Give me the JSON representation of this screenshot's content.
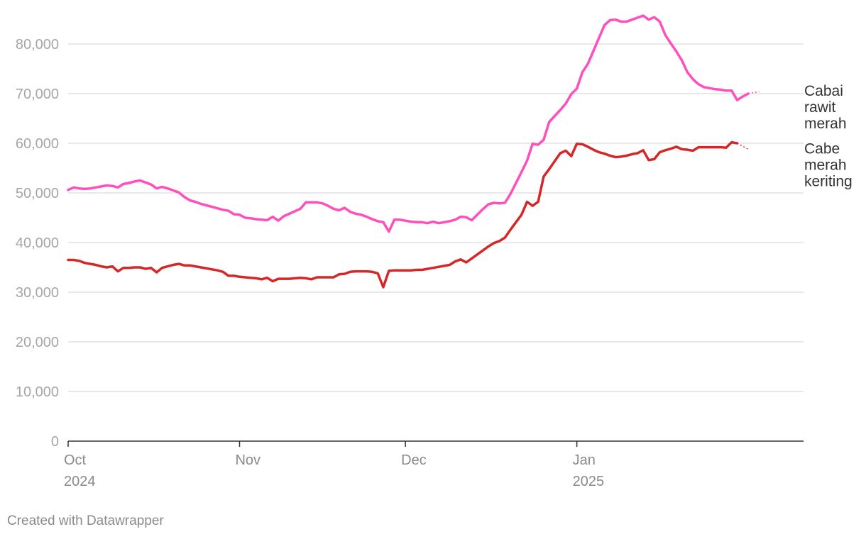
{
  "chart_data": {
    "type": "line",
    "title": "",
    "xlabel": "",
    "ylabel": "",
    "ylim": [
      0,
      80000
    ],
    "yticks": [
      0,
      10000,
      20000,
      30000,
      40000,
      50000,
      60000,
      70000,
      80000
    ],
    "ytick_labels": [
      "0",
      "10,000",
      "20,000",
      "30,000",
      "40,000",
      "50,000",
      "60,000",
      "70,000",
      "80,000"
    ],
    "xlim": [
      "2024-10-01",
      "2025-02-11"
    ],
    "x_ticks": [
      {
        "date": "2024-10-01",
        "label": "Oct",
        "sublabel": "2024"
      },
      {
        "date": "2024-11-01",
        "label": "Nov",
        "sublabel": ""
      },
      {
        "date": "2024-12-01",
        "label": "Dec",
        "sublabel": ""
      },
      {
        "date": "2025-01-01",
        "label": "Jan",
        "sublabel": "2025"
      }
    ],
    "grid": true,
    "series": [
      {
        "name": "Cabai rawit merah",
        "label_lines": [
          "Cabai",
          "rawit",
          "merah"
        ],
        "color": "#ff4fbd",
        "points": [
          [
            "2024-10-01",
            50600
          ],
          [
            "2024-10-02",
            51100
          ],
          [
            "2024-10-03",
            50900
          ],
          [
            "2024-10-04",
            50800
          ],
          [
            "2024-10-05",
            50900
          ],
          [
            "2024-10-06",
            51100
          ],
          [
            "2024-10-07",
            51300
          ],
          [
            "2024-10-08",
            51500
          ],
          [
            "2024-10-09",
            51400
          ],
          [
            "2024-10-10",
            51100
          ],
          [
            "2024-10-11",
            51800
          ],
          [
            "2024-10-12",
            52000
          ],
          [
            "2024-10-13",
            52300
          ],
          [
            "2024-10-14",
            52500
          ],
          [
            "2024-10-15",
            52100
          ],
          [
            "2024-10-16",
            51700
          ],
          [
            "2024-10-17",
            50900
          ],
          [
            "2024-10-18",
            51200
          ],
          [
            "2024-10-19",
            50900
          ],
          [
            "2024-10-20",
            50500
          ],
          [
            "2024-10-21",
            50100
          ],
          [
            "2024-10-22",
            49200
          ],
          [
            "2024-10-23",
            48500
          ],
          [
            "2024-10-24",
            48200
          ],
          [
            "2024-10-25",
            47800
          ],
          [
            "2024-10-26",
            47500
          ],
          [
            "2024-10-27",
            47200
          ],
          [
            "2024-10-28",
            46900
          ],
          [
            "2024-10-29",
            46600
          ],
          [
            "2024-10-30",
            46400
          ],
          [
            "2024-10-31",
            45700
          ],
          [
            "2024-11-01",
            45600
          ],
          [
            "2024-11-02",
            45000
          ],
          [
            "2024-11-03",
            44900
          ],
          [
            "2024-11-04",
            44700
          ],
          [
            "2024-11-05",
            44600
          ],
          [
            "2024-11-06",
            44500
          ],
          [
            "2024-11-07",
            45200
          ],
          [
            "2024-11-08",
            44400
          ],
          [
            "2024-11-09",
            45300
          ],
          [
            "2024-11-10",
            45800
          ],
          [
            "2024-11-11",
            46300
          ],
          [
            "2024-11-12",
            46800
          ],
          [
            "2024-11-13",
            48100
          ],
          [
            "2024-11-14",
            48100
          ],
          [
            "2024-11-15",
            48100
          ],
          [
            "2024-11-16",
            47900
          ],
          [
            "2024-11-17",
            47400
          ],
          [
            "2024-11-18",
            46800
          ],
          [
            "2024-11-19",
            46500
          ],
          [
            "2024-11-20",
            47000
          ],
          [
            "2024-11-21",
            46200
          ],
          [
            "2024-11-22",
            45800
          ],
          [
            "2024-11-23",
            45600
          ],
          [
            "2024-11-24",
            45200
          ],
          [
            "2024-11-25",
            44700
          ],
          [
            "2024-11-26",
            44300
          ],
          [
            "2024-11-27",
            44100
          ],
          [
            "2024-11-28",
            42200
          ],
          [
            "2024-11-29",
            44600
          ],
          [
            "2024-11-30",
            44600
          ],
          [
            "2024-12-01",
            44400
          ],
          [
            "2024-12-02",
            44200
          ],
          [
            "2024-12-03",
            44100
          ],
          [
            "2024-12-04",
            44100
          ],
          [
            "2024-12-05",
            43900
          ],
          [
            "2024-12-06",
            44200
          ],
          [
            "2024-12-07",
            43900
          ],
          [
            "2024-12-08",
            44100
          ],
          [
            "2024-12-09",
            44300
          ],
          [
            "2024-12-10",
            44600
          ],
          [
            "2024-12-11",
            45200
          ],
          [
            "2024-12-12",
            45100
          ],
          [
            "2024-12-13",
            44500
          ],
          [
            "2024-12-14",
            45600
          ],
          [
            "2024-12-15",
            46700
          ],
          [
            "2024-12-16",
            47700
          ],
          [
            "2024-12-17",
            48000
          ],
          [
            "2024-12-18",
            47900
          ],
          [
            "2024-12-19",
            48000
          ],
          [
            "2024-12-20",
            49800
          ],
          [
            "2024-12-21",
            52000
          ],
          [
            "2024-12-22",
            54200
          ],
          [
            "2024-12-23",
            56500
          ],
          [
            "2024-12-24",
            59900
          ],
          [
            "2024-12-25",
            59700
          ],
          [
            "2024-12-26",
            60700
          ],
          [
            "2024-12-27",
            64300
          ],
          [
            "2024-12-28",
            65500
          ],
          [
            "2024-12-29",
            66700
          ],
          [
            "2024-12-30",
            68000
          ],
          [
            "2024-12-31",
            69900
          ],
          [
            "2025-01-01",
            71000
          ],
          [
            "2025-01-02",
            74300
          ],
          [
            "2025-01-03",
            76000
          ],
          [
            "2025-01-04",
            78600
          ],
          [
            "2025-01-05",
            81200
          ],
          [
            "2025-01-06",
            83800
          ],
          [
            "2025-01-07",
            84800
          ],
          [
            "2025-01-08",
            84900
          ],
          [
            "2025-01-09",
            84500
          ],
          [
            "2025-01-10",
            84500
          ],
          [
            "2025-01-11",
            84900
          ],
          [
            "2025-01-12",
            85300
          ],
          [
            "2025-01-13",
            85700
          ],
          [
            "2025-01-14",
            84900
          ],
          [
            "2025-01-15",
            85400
          ],
          [
            "2025-01-16",
            84500
          ],
          [
            "2025-01-17",
            81800
          ],
          [
            "2025-01-18",
            80100
          ],
          [
            "2025-01-19",
            78500
          ],
          [
            "2025-01-20",
            76700
          ],
          [
            "2025-01-21",
            74300
          ],
          [
            "2025-01-22",
            72900
          ],
          [
            "2025-01-23",
            71900
          ],
          [
            "2025-01-24",
            71300
          ],
          [
            "2025-01-25",
            71100
          ],
          [
            "2025-01-26",
            70900
          ],
          [
            "2025-01-27",
            70800
          ],
          [
            "2025-01-28",
            70600
          ],
          [
            "2025-01-29",
            70600
          ],
          [
            "2025-01-30",
            68700
          ],
          [
            "2025-01-31",
            69400
          ],
          [
            "2025-02-01",
            70000
          ]
        ],
        "dashed_end": [
          "2025-02-03",
          70400
        ]
      },
      {
        "name": "Cabe merah keriting",
        "label_lines": [
          "Cabe",
          "merah",
          "keriting"
        ],
        "color": "#d42828",
        "points": [
          [
            "2024-10-01",
            36500
          ],
          [
            "2024-10-02",
            36500
          ],
          [
            "2024-10-03",
            36300
          ],
          [
            "2024-10-04",
            35900
          ],
          [
            "2024-10-05",
            35700
          ],
          [
            "2024-10-06",
            35500
          ],
          [
            "2024-10-07",
            35200
          ],
          [
            "2024-10-08",
            35000
          ],
          [
            "2024-10-09",
            35200
          ],
          [
            "2024-10-10",
            34200
          ],
          [
            "2024-10-11",
            34900
          ],
          [
            "2024-10-12",
            34900
          ],
          [
            "2024-10-13",
            35000
          ],
          [
            "2024-10-14",
            35000
          ],
          [
            "2024-10-15",
            34700
          ],
          [
            "2024-10-16",
            34900
          ],
          [
            "2024-10-17",
            34000
          ],
          [
            "2024-10-18",
            34900
          ],
          [
            "2024-10-19",
            35200
          ],
          [
            "2024-10-20",
            35500
          ],
          [
            "2024-10-21",
            35700
          ],
          [
            "2024-10-22",
            35400
          ],
          [
            "2024-10-23",
            35400
          ],
          [
            "2024-10-24",
            35200
          ],
          [
            "2024-10-25",
            35000
          ],
          [
            "2024-10-26",
            34800
          ],
          [
            "2024-10-27",
            34600
          ],
          [
            "2024-10-28",
            34400
          ],
          [
            "2024-10-29",
            34100
          ],
          [
            "2024-10-30",
            33300
          ],
          [
            "2024-10-31",
            33300
          ],
          [
            "2024-11-01",
            33100
          ],
          [
            "2024-11-02",
            33000
          ],
          [
            "2024-11-03",
            32900
          ],
          [
            "2024-11-04",
            32800
          ],
          [
            "2024-11-05",
            32600
          ],
          [
            "2024-11-06",
            32900
          ],
          [
            "2024-11-07",
            32200
          ],
          [
            "2024-11-08",
            32700
          ],
          [
            "2024-11-09",
            32700
          ],
          [
            "2024-11-10",
            32700
          ],
          [
            "2024-11-11",
            32800
          ],
          [
            "2024-11-12",
            32900
          ],
          [
            "2024-11-13",
            32800
          ],
          [
            "2024-11-14",
            32600
          ],
          [
            "2024-11-15",
            33000
          ],
          [
            "2024-11-16",
            33000
          ],
          [
            "2024-11-17",
            33000
          ],
          [
            "2024-11-18",
            33000
          ],
          [
            "2024-11-19",
            33600
          ],
          [
            "2024-11-20",
            33700
          ],
          [
            "2024-11-21",
            34100
          ],
          [
            "2024-11-22",
            34200
          ],
          [
            "2024-11-23",
            34200
          ],
          [
            "2024-11-24",
            34200
          ],
          [
            "2024-11-25",
            34100
          ],
          [
            "2024-11-26",
            33800
          ],
          [
            "2024-11-27",
            31000
          ],
          [
            "2024-11-28",
            34300
          ],
          [
            "2024-11-29",
            34400
          ],
          [
            "2024-11-30",
            34400
          ],
          [
            "2024-12-01",
            34400
          ],
          [
            "2024-12-02",
            34400
          ],
          [
            "2024-12-03",
            34500
          ],
          [
            "2024-12-04",
            34500
          ],
          [
            "2024-12-05",
            34700
          ],
          [
            "2024-12-06",
            34900
          ],
          [
            "2024-12-07",
            35100
          ],
          [
            "2024-12-08",
            35300
          ],
          [
            "2024-12-09",
            35500
          ],
          [
            "2024-12-10",
            36200
          ],
          [
            "2024-12-11",
            36600
          ],
          [
            "2024-12-12",
            36000
          ],
          [
            "2024-12-13",
            36800
          ],
          [
            "2024-12-14",
            37600
          ],
          [
            "2024-12-15",
            38400
          ],
          [
            "2024-12-16",
            39200
          ],
          [
            "2024-12-17",
            39900
          ],
          [
            "2024-12-18",
            40300
          ],
          [
            "2024-12-19",
            41000
          ],
          [
            "2024-12-20",
            42600
          ],
          [
            "2024-12-21",
            44100
          ],
          [
            "2024-12-22",
            45600
          ],
          [
            "2024-12-23",
            48200
          ],
          [
            "2024-12-24",
            47400
          ],
          [
            "2024-12-25",
            48200
          ],
          [
            "2024-12-26",
            53300
          ],
          [
            "2024-12-27",
            54800
          ],
          [
            "2024-12-28",
            56400
          ],
          [
            "2024-12-29",
            58000
          ],
          [
            "2024-12-30",
            58500
          ],
          [
            "2024-12-31",
            57400
          ],
          [
            "2025-01-01",
            59900
          ],
          [
            "2025-01-02",
            59800
          ],
          [
            "2025-01-03",
            59300
          ],
          [
            "2025-01-04",
            58700
          ],
          [
            "2025-01-05",
            58200
          ],
          [
            "2025-01-06",
            57900
          ],
          [
            "2025-01-07",
            57500
          ],
          [
            "2025-01-08",
            57200
          ],
          [
            "2025-01-09",
            57300
          ],
          [
            "2025-01-10",
            57500
          ],
          [
            "2025-01-11",
            57800
          ],
          [
            "2025-01-12",
            58000
          ],
          [
            "2025-01-13",
            58600
          ],
          [
            "2025-01-14",
            56600
          ],
          [
            "2025-01-15",
            56800
          ],
          [
            "2025-01-16",
            58200
          ],
          [
            "2025-01-17",
            58600
          ],
          [
            "2025-01-18",
            58900
          ],
          [
            "2025-01-19",
            59300
          ],
          [
            "2025-01-20",
            58800
          ],
          [
            "2025-01-21",
            58700
          ],
          [
            "2025-01-22",
            58500
          ],
          [
            "2025-01-23",
            59200
          ],
          [
            "2025-01-24",
            59200
          ],
          [
            "2025-01-25",
            59200
          ],
          [
            "2025-01-26",
            59200
          ],
          [
            "2025-01-27",
            59200
          ],
          [
            "2025-01-28",
            59100
          ],
          [
            "2025-01-29",
            60200
          ],
          [
            "2025-01-30",
            60000
          ]
        ],
        "dashed_end": [
          "2025-02-01",
          58800
        ]
      }
    ]
  },
  "footer": {
    "credit": "Created with Datawrapper"
  }
}
